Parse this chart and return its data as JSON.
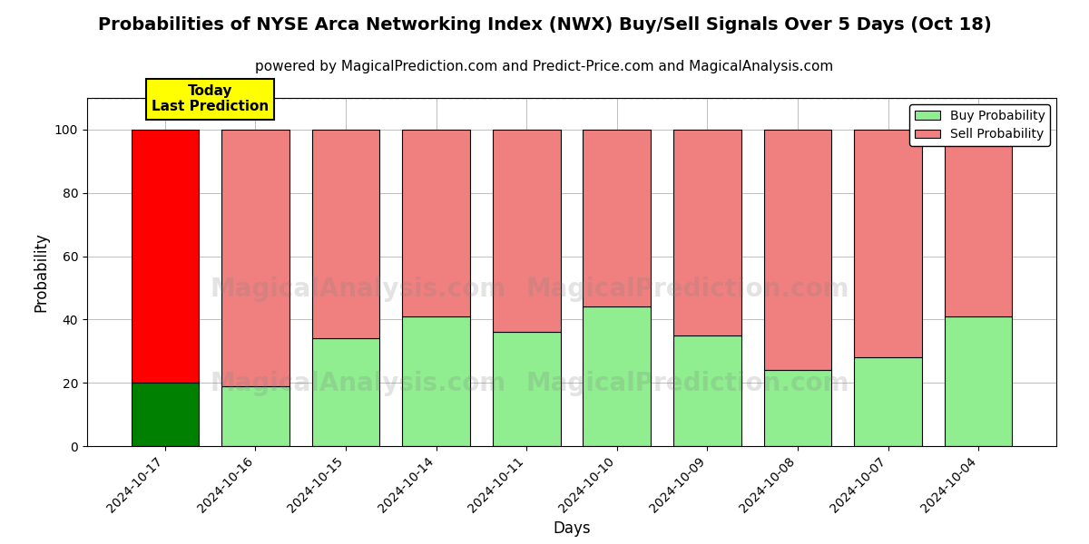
{
  "title": "Probabilities of NYSE Arca Networking Index (NWX) Buy/Sell Signals Over 5 Days (Oct 18)",
  "subtitle": "powered by MagicalPrediction.com and Predict-Price.com and MagicalAnalysis.com",
  "xlabel": "Days",
  "ylabel": "Probability",
  "categories": [
    "2024-10-17",
    "2024-10-16",
    "2024-10-15",
    "2024-10-14",
    "2024-10-11",
    "2024-10-10",
    "2024-10-09",
    "2024-10-08",
    "2024-10-07",
    "2024-10-04"
  ],
  "buy_values": [
    20,
    19,
    34,
    41,
    36,
    44,
    35,
    24,
    28,
    41
  ],
  "sell_values": [
    80,
    81,
    66,
    59,
    64,
    56,
    65,
    76,
    72,
    59
  ],
  "today_buy_color": "#008000",
  "today_sell_color": "#FF0000",
  "other_buy_color": "#90EE90",
  "other_sell_color": "#F08080",
  "today_annotation": "Today\nLast Prediction",
  "annotation_bg_color": "#FFFF00",
  "ylim": [
    0,
    110
  ],
  "dashed_line_y": 110,
  "legend_buy_label": "Buy Probability",
  "legend_sell_label": "Sell Probability",
  "watermark_text1": "MagicalAnalysis.com",
  "watermark_text2": "MagicalPrediction.com",
  "title_fontsize": 14,
  "subtitle_fontsize": 11,
  "axis_label_fontsize": 12,
  "tick_fontsize": 10
}
